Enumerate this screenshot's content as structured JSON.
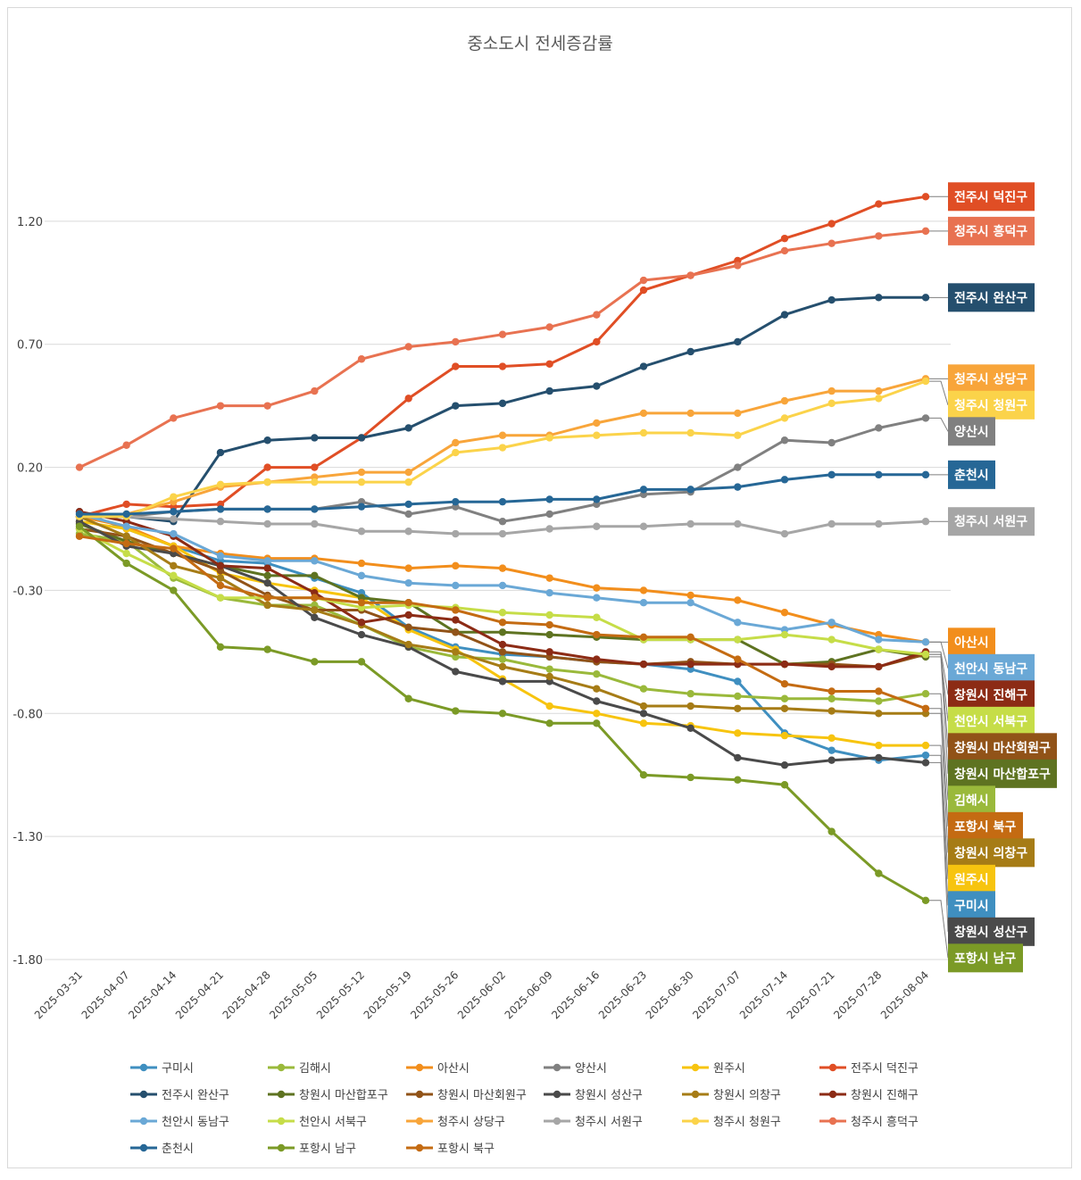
{
  "chart_data": {
    "type": "line",
    "title": "중소도시 전세증감률",
    "xlabel": "",
    "ylabel": "",
    "ylim": [
      -1.8,
      1.7
    ],
    "yticks": [
      1.2,
      0.7,
      0.2,
      -0.3,
      -0.8,
      -1.3,
      -1.8
    ],
    "ytick_labels": [
      "1.20",
      "0.70",
      "0.20",
      "-0.30",
      "-0.80",
      "-1.30",
      "-1.80"
    ],
    "grid": true,
    "legend_position": "bottom",
    "x": [
      "2025-03-31",
      "2025-04-07",
      "2025-04-14",
      "2025-04-21",
      "2025-04-28",
      "2025-05-05",
      "2025-05-12",
      "2025-05-19",
      "2025-05-26",
      "2025-06-02",
      "2025-06-09",
      "2025-06-16",
      "2025-06-23",
      "2025-06-30",
      "2025-07-07",
      "2025-07-14",
      "2025-07-21",
      "2025-07-28",
      "2025-08-04"
    ],
    "series": [
      {
        "name": "구미시",
        "color": "#3f8fc0",
        "values": [
          0.02,
          -0.05,
          -0.12,
          -0.18,
          -0.19,
          -0.25,
          -0.31,
          -0.45,
          -0.53,
          -0.56,
          -0.57,
          -0.59,
          -0.6,
          -0.62,
          -0.67,
          -0.88,
          -0.95,
          -0.99,
          -0.97
        ]
      },
      {
        "name": "김해시",
        "color": "#9ab93b",
        "values": [
          -0.07,
          -0.1,
          -0.25,
          -0.33,
          -0.36,
          -0.36,
          -0.44,
          -0.53,
          -0.57,
          -0.58,
          -0.62,
          -0.64,
          -0.7,
          -0.72,
          -0.73,
          -0.74,
          -0.74,
          -0.75,
          -0.72
        ]
      },
      {
        "name": "아산시",
        "color": "#f28e1c",
        "values": [
          0.0,
          -0.04,
          -0.12,
          -0.15,
          -0.17,
          -0.17,
          -0.19,
          -0.21,
          -0.2,
          -0.21,
          -0.25,
          -0.29,
          -0.3,
          -0.32,
          -0.34,
          -0.39,
          -0.44,
          -0.48,
          -0.51
        ]
      },
      {
        "name": "양산시",
        "color": "#808080",
        "values": [
          0.0,
          0.0,
          0.02,
          0.03,
          0.03,
          0.03,
          0.06,
          0.01,
          0.04,
          -0.02,
          0.01,
          0.05,
          0.09,
          0.1,
          0.2,
          0.31,
          0.3,
          0.36,
          0.4
        ]
      },
      {
        "name": "원주시",
        "color": "#f7c40f",
        "values": [
          -0.02,
          -0.05,
          -0.12,
          -0.23,
          -0.27,
          -0.3,
          -0.33,
          -0.46,
          -0.54,
          -0.66,
          -0.77,
          -0.8,
          -0.84,
          -0.85,
          -0.88,
          -0.89,
          -0.9,
          -0.93,
          -0.93
        ]
      },
      {
        "name": "전주시 덕진구",
        "color": "#e04e25",
        "values": [
          0.0,
          0.05,
          0.04,
          0.05,
          0.2,
          0.2,
          0.32,
          0.48,
          0.61,
          0.61,
          0.62,
          0.71,
          0.92,
          0.98,
          1.04,
          1.13,
          1.19,
          1.27,
          1.3
        ]
      },
      {
        "name": "전주시 완산구",
        "color": "#254f6e",
        "values": [
          0.0,
          0.0,
          -0.02,
          0.26,
          0.31,
          0.32,
          0.32,
          0.36,
          0.45,
          0.46,
          0.51,
          0.53,
          0.61,
          0.67,
          0.71,
          0.82,
          0.88,
          0.89,
          0.89
        ]
      },
      {
        "name": "창원시 마산합포구",
        "color": "#5e7321",
        "values": [
          -0.03,
          -0.1,
          -0.15,
          -0.2,
          -0.24,
          -0.24,
          -0.33,
          -0.35,
          -0.47,
          -0.47,
          -0.48,
          -0.49,
          -0.5,
          -0.5,
          -0.5,
          -0.6,
          -0.59,
          -0.54,
          -0.57
        ]
      },
      {
        "name": "창원시 마산회원구",
        "color": "#915318",
        "values": [
          -0.05,
          -0.08,
          -0.15,
          -0.22,
          -0.32,
          -0.38,
          -0.38,
          -0.45,
          -0.47,
          -0.55,
          -0.57,
          -0.59,
          -0.6,
          -0.59,
          -0.6,
          -0.6,
          -0.6,
          -0.61,
          -0.56
        ]
      },
      {
        "name": "창원시 성산구",
        "color": "#4a4a4a",
        "values": [
          -0.02,
          -0.12,
          -0.15,
          -0.2,
          -0.27,
          -0.41,
          -0.48,
          -0.53,
          -0.63,
          -0.67,
          -0.67,
          -0.75,
          -0.8,
          -0.86,
          -0.98,
          -1.01,
          -0.99,
          -0.98,
          -1.0
        ]
      },
      {
        "name": "창원시 의창구",
        "color": "#a67c16",
        "values": [
          0.0,
          -0.08,
          -0.2,
          -0.25,
          -0.36,
          -0.38,
          -0.44,
          -0.52,
          -0.55,
          -0.61,
          -0.65,
          -0.7,
          -0.77,
          -0.77,
          -0.78,
          -0.78,
          -0.79,
          -0.8,
          -0.8
        ]
      },
      {
        "name": "창원시 진해구",
        "color": "#8c2b15",
        "values": [
          0.02,
          -0.02,
          -0.08,
          -0.2,
          -0.21,
          -0.31,
          -0.43,
          -0.4,
          -0.42,
          -0.52,
          -0.55,
          -0.58,
          -0.6,
          -0.6,
          -0.6,
          -0.6,
          -0.61,
          -0.61,
          -0.55
        ]
      },
      {
        "name": "천안시 동남구",
        "color": "#6aa8d6",
        "values": [
          0.01,
          -0.04,
          -0.07,
          -0.16,
          -0.18,
          -0.18,
          -0.24,
          -0.27,
          -0.28,
          -0.28,
          -0.31,
          -0.33,
          -0.35,
          -0.35,
          -0.43,
          -0.46,
          -0.43,
          -0.5,
          -0.51
        ]
      },
      {
        "name": "천안시 서북구",
        "color": "#c6dd48",
        "values": [
          -0.05,
          -0.15,
          -0.24,
          -0.33,
          -0.33,
          -0.33,
          -0.37,
          -0.36,
          -0.37,
          -0.39,
          -0.4,
          -0.41,
          -0.5,
          -0.5,
          -0.5,
          -0.48,
          -0.5,
          -0.54,
          -0.56
        ]
      },
      {
        "name": "청주시 상당구",
        "color": "#f8a53a",
        "values": [
          0.0,
          0.01,
          0.06,
          0.12,
          0.14,
          0.16,
          0.18,
          0.18,
          0.3,
          0.33,
          0.33,
          0.38,
          0.42,
          0.42,
          0.42,
          0.47,
          0.51,
          0.51,
          0.56
        ]
      },
      {
        "name": "청주시 서원구",
        "color": "#a6a6a6",
        "values": [
          0.0,
          0.0,
          -0.01,
          -0.02,
          -0.03,
          -0.03,
          -0.06,
          -0.06,
          -0.07,
          -0.07,
          -0.05,
          -0.04,
          -0.04,
          -0.03,
          -0.03,
          -0.07,
          -0.03,
          -0.03,
          -0.02
        ]
      },
      {
        "name": "청주시 청원구",
        "color": "#fbd34a",
        "values": [
          0.0,
          0.0,
          0.08,
          0.13,
          0.14,
          0.14,
          0.14,
          0.14,
          0.26,
          0.28,
          0.32,
          0.33,
          0.34,
          0.34,
          0.33,
          0.4,
          0.46,
          0.48,
          0.55
        ]
      },
      {
        "name": "청주시 흥덕구",
        "color": "#e87251",
        "values": [
          0.2,
          0.29,
          0.4,
          0.45,
          0.45,
          0.51,
          0.64,
          0.69,
          0.71,
          0.74,
          0.77,
          0.82,
          0.96,
          0.98,
          1.02,
          1.08,
          1.11,
          1.14,
          1.16
        ]
      },
      {
        "name": "춘천시",
        "color": "#266796",
        "values": [
          0.01,
          0.01,
          0.02,
          0.03,
          0.03,
          0.03,
          0.04,
          0.05,
          0.06,
          0.06,
          0.07,
          0.07,
          0.11,
          0.11,
          0.12,
          0.15,
          0.17,
          0.17,
          0.17
        ]
      },
      {
        "name": "포항시 남구",
        "color": "#7b9a26",
        "values": [
          -0.04,
          -0.19,
          -0.3,
          -0.53,
          -0.54,
          -0.59,
          -0.59,
          -0.74,
          -0.79,
          -0.8,
          -0.84,
          -0.84,
          -1.05,
          -1.06,
          -1.07,
          -1.09,
          -1.28,
          -1.45,
          -1.56
        ]
      },
      {
        "name": "포항시 북구",
        "color": "#c46b12",
        "values": [
          -0.08,
          -0.11,
          -0.13,
          -0.28,
          -0.33,
          -0.33,
          -0.35,
          -0.35,
          -0.38,
          -0.43,
          -0.44,
          -0.48,
          -0.49,
          -0.49,
          -0.58,
          -0.68,
          -0.71,
          -0.71,
          -0.78
        ]
      }
    ],
    "end_labels": [
      {
        "series": "전주시 덕진구",
        "text": "전주시 덕진구",
        "color": "#e04e25"
      },
      {
        "series": "청주시 흥덕구",
        "text": "청주시 흥덕구",
        "color": "#e87251"
      },
      {
        "series": "전주시 완산구",
        "text": "전주시 완산구",
        "color": "#254f6e"
      },
      {
        "series": "청주시 상당구",
        "text": "청주시 상당구",
        "color": "#f8a53a"
      },
      {
        "series": "청주시 청원구",
        "text": "청주시 청원구",
        "color": "#fbd34a"
      },
      {
        "series": "양산시",
        "text": "양산시",
        "color": "#808080"
      },
      {
        "series": "춘천시",
        "text": "춘천시",
        "color": "#266796"
      },
      {
        "series": "청주시 서원구",
        "text": "청주시 서원구",
        "color": "#a6a6a6"
      },
      {
        "series": "아산시",
        "text": "아산시",
        "color": "#f28e1c"
      },
      {
        "series": "천안시 동남구",
        "text": "천안시 동남구",
        "color": "#6aa8d6"
      },
      {
        "series": "창원시 진해구",
        "text": "창원시 진해구",
        "color": "#8c2b15"
      },
      {
        "series": "창원시 마산합포구",
        "text": "창원시 마산합포구",
        "color": "#5e7321"
      },
      {
        "series": "천안시 서북구",
        "text": "천안시 서북구",
        "color": "#c6dd48"
      },
      {
        "series": "김해시",
        "text": "김해시",
        "color": "#9ab93b"
      },
      {
        "series": "포항시 북구",
        "text": "포항시 북구",
        "color": "#c46b12"
      },
      {
        "series": "창원시 마산회원구",
        "text": "창원시 마산회원구",
        "color": "#915318"
      },
      {
        "series": "원주시",
        "text": "원주시",
        "color": "#f7c40f"
      },
      {
        "series": "구미시",
        "text": "구미시",
        "color": "#3f8fc0"
      },
      {
        "series": "창원시 성산구",
        "text": "창원시 성산구",
        "color": "#4a4a4a"
      },
      {
        "series": "창원시 의창구",
        "text": "창원시 의창구",
        "color": "#a67c16"
      },
      {
        "series": "포항시 남구",
        "text": "포항시 남구",
        "color": "#7b9a26"
      }
    ]
  }
}
